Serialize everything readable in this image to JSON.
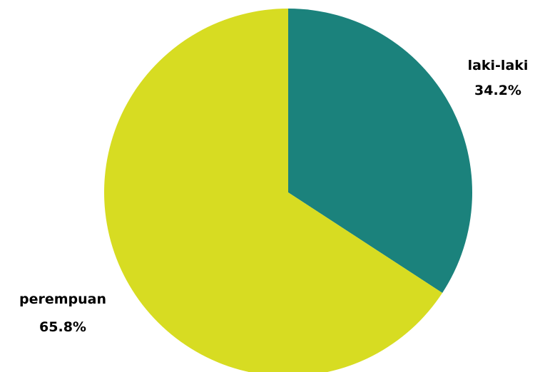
{
  "chart_data": {
    "type": "pie",
    "title": "",
    "start_angle_deg": 0,
    "direction": "clockwise",
    "slices": [
      {
        "label": "laki-laki",
        "value": 34.2,
        "display": "34.2%",
        "color": "#1b827c"
      },
      {
        "label": "perempuan",
        "value": 65.8,
        "display": "65.8%",
        "color": "#d7dc22"
      }
    ],
    "legend": "none"
  }
}
